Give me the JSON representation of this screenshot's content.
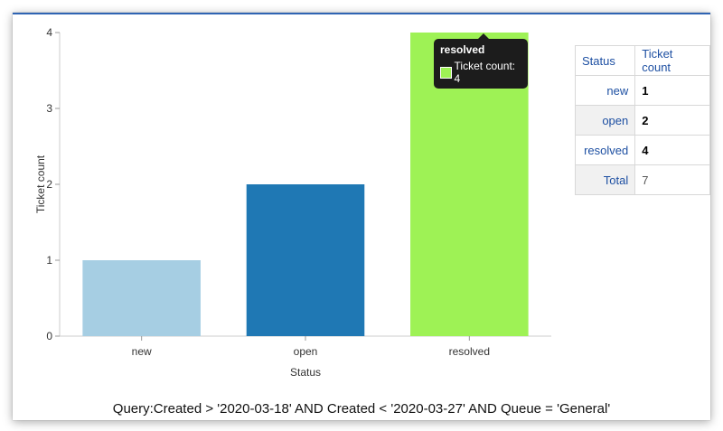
{
  "chart_data": {
    "type": "bar",
    "categories": [
      "new",
      "open",
      "resolved"
    ],
    "values": [
      1,
      2,
      4
    ],
    "colors": [
      "#a6cee3",
      "#1f78b4",
      "#9ef255"
    ],
    "xlabel": "Status",
    "ylabel": "Ticket count",
    "ylim": [
      0,
      4
    ],
    "yticks": [
      0,
      1,
      2,
      3,
      4
    ]
  },
  "tooltip": {
    "title": "resolved",
    "text": "Ticket count: 4"
  },
  "table": {
    "header_status": "Status",
    "header_count": "Ticket count",
    "rows": [
      {
        "status": "new",
        "count": "1"
      },
      {
        "status": "open",
        "count": "2"
      },
      {
        "status": "resolved",
        "count": "4"
      }
    ],
    "total_label": "Total",
    "total_value": "7"
  },
  "query": "Query:Created > '2020-03-18' AND Created < '2020-03-27' AND Queue = 'General'"
}
